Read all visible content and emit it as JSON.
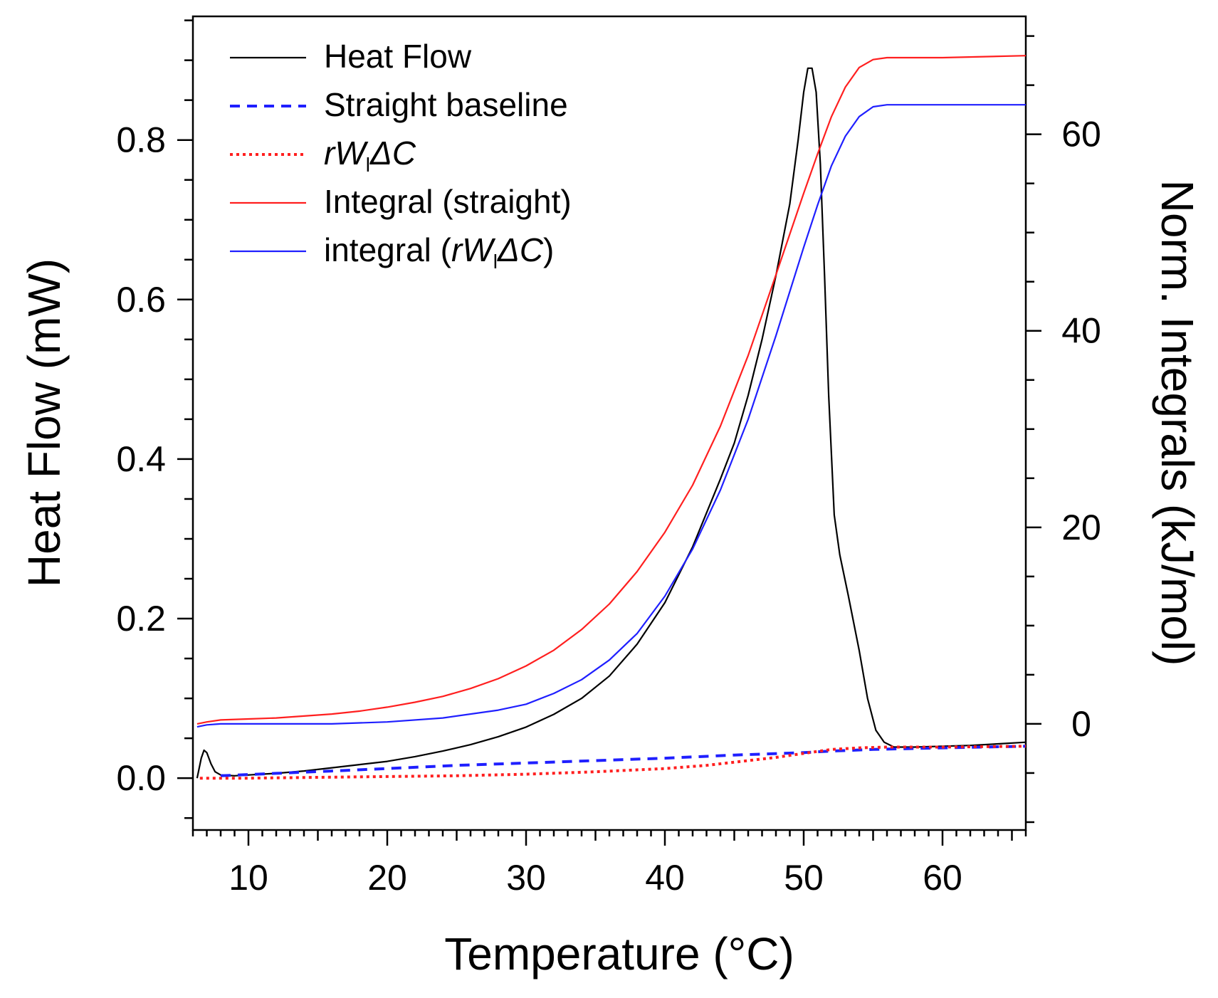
{
  "chart_data": {
    "type": "line",
    "xlabel": "Temperature (°C)",
    "ylabel": "Heat Flow (mW)",
    "y2label": "Norm. Integrals (kJ/mol)",
    "xlim": [
      6,
      66
    ],
    "ylim": [
      -0.065,
      0.955
    ],
    "y2lim": [
      -10.8,
      72
    ],
    "x_ticks": [
      10,
      20,
      30,
      40,
      50,
      60
    ],
    "x_tick_labels": [
      "10",
      "20",
      "30",
      "40",
      "50",
      "60"
    ],
    "y_ticks": [
      0.0,
      0.2,
      0.4,
      0.6,
      0.8
    ],
    "y_tick_labels": [
      "0.0",
      "0.2",
      "0.4",
      "0.6",
      "0.8"
    ],
    "y2_ticks": [
      0,
      20,
      40,
      60
    ],
    "y2_tick_labels": [
      "0",
      "20",
      "40",
      "60"
    ],
    "legend_position": "top-left",
    "series": [
      {
        "name": "Heat Flow",
        "legend_label": "Heat Flow",
        "axis": "left",
        "color": "#000000",
        "style": "solid",
        "points": [
          [
            6.3,
            0.0
          ],
          [
            6.6,
            0.025
          ],
          [
            6.8,
            0.035
          ],
          [
            7.0,
            0.032
          ],
          [
            7.3,
            0.018
          ],
          [
            7.6,
            0.008
          ],
          [
            8.0,
            0.004
          ],
          [
            9,
            0.003
          ],
          [
            10,
            0.004
          ],
          [
            12,
            0.006
          ],
          [
            14,
            0.009
          ],
          [
            16,
            0.013
          ],
          [
            18,
            0.017
          ],
          [
            20,
            0.021
          ],
          [
            22,
            0.027
          ],
          [
            24,
            0.034
          ],
          [
            26,
            0.042
          ],
          [
            28,
            0.052
          ],
          [
            30,
            0.064
          ],
          [
            32,
            0.08
          ],
          [
            34,
            0.1
          ],
          [
            36,
            0.128
          ],
          [
            38,
            0.168
          ],
          [
            40,
            0.22
          ],
          [
            42,
            0.29
          ],
          [
            44,
            0.375
          ],
          [
            45,
            0.42
          ],
          [
            46,
            0.48
          ],
          [
            47,
            0.55
          ],
          [
            48,
            0.63
          ],
          [
            49,
            0.72
          ],
          [
            49.6,
            0.8
          ],
          [
            50.0,
            0.86
          ],
          [
            50.3,
            0.89
          ],
          [
            50.6,
            0.89
          ],
          [
            50.9,
            0.86
          ],
          [
            51.2,
            0.77
          ],
          [
            51.5,
            0.63
          ],
          [
            51.8,
            0.48
          ],
          [
            52.2,
            0.33
          ],
          [
            52.6,
            0.28
          ],
          [
            53.2,
            0.23
          ],
          [
            54.0,
            0.16
          ],
          [
            54.6,
            0.1
          ],
          [
            55.2,
            0.06
          ],
          [
            55.8,
            0.045
          ],
          [
            56.5,
            0.039
          ],
          [
            58,
            0.039
          ],
          [
            60,
            0.04
          ],
          [
            62,
            0.041
          ],
          [
            64,
            0.043
          ],
          [
            66,
            0.045
          ]
        ]
      },
      {
        "name": "Straight baseline",
        "legend_label": "Straight baseline",
        "axis": "left",
        "color": "#1f1fff",
        "style": "dashed",
        "points": [
          [
            8,
            0.003
          ],
          [
            12,
            0.006
          ],
          [
            16,
            0.009
          ],
          [
            20,
            0.012
          ],
          [
            25,
            0.016
          ],
          [
            30,
            0.019
          ],
          [
            35,
            0.022
          ],
          [
            40,
            0.025
          ],
          [
            45,
            0.029
          ],
          [
            50,
            0.032
          ],
          [
            52,
            0.034
          ],
          [
            55,
            0.036
          ],
          [
            60,
            0.038
          ],
          [
            66,
            0.04
          ]
        ]
      },
      {
        "name": "rW_l ΔC",
        "legend_label": "rW",
        "legend_sub": "l",
        "legend_suffix": "ΔC",
        "axis": "left",
        "color": "#ff1f1f",
        "style": "dotted",
        "points": [
          [
            6.5,
            0.0
          ],
          [
            10,
            0.0
          ],
          [
            15,
            0.001
          ],
          [
            20,
            0.002
          ],
          [
            25,
            0.003
          ],
          [
            30,
            0.005
          ],
          [
            35,
            0.008
          ],
          [
            40,
            0.012
          ],
          [
            43,
            0.016
          ],
          [
            46,
            0.022
          ],
          [
            48,
            0.026
          ],
          [
            50,
            0.031
          ],
          [
            52,
            0.036
          ],
          [
            54,
            0.038
          ],
          [
            56,
            0.039
          ],
          [
            60,
            0.039
          ],
          [
            66,
            0.04
          ]
        ]
      },
      {
        "name": "Integral (straight)",
        "legend_label": "Integral (straight)",
        "axis": "right",
        "color": "#ff1f1f",
        "style": "solid",
        "points": [
          [
            6.3,
            0.0
          ],
          [
            7,
            0.2
          ],
          [
            8,
            0.4
          ],
          [
            10,
            0.5
          ],
          [
            12,
            0.6
          ],
          [
            14,
            0.8
          ],
          [
            16,
            1.0
          ],
          [
            18,
            1.3
          ],
          [
            20,
            1.7
          ],
          [
            22,
            2.2
          ],
          [
            24,
            2.8
          ],
          [
            26,
            3.6
          ],
          [
            28,
            4.6
          ],
          [
            30,
            5.9
          ],
          [
            32,
            7.5
          ],
          [
            34,
            9.6
          ],
          [
            36,
            12.2
          ],
          [
            38,
            15.5
          ],
          [
            40,
            19.5
          ],
          [
            42,
            24.3
          ],
          [
            44,
            30.3
          ],
          [
            46,
            37.5
          ],
          [
            48,
            45.7
          ],
          [
            50,
            54.0
          ],
          [
            51,
            58.0
          ],
          [
            52,
            61.8
          ],
          [
            53,
            64.8
          ],
          [
            54,
            66.8
          ],
          [
            55,
            67.6
          ],
          [
            56,
            67.8
          ],
          [
            60,
            67.8
          ],
          [
            66,
            68.0
          ]
        ]
      },
      {
        "name": "integral (rW_l ΔC)",
        "legend_label": "integral (",
        "legend_italic": "rW",
        "legend_sub": "l",
        "legend_suffix": "ΔC",
        "legend_close": ")",
        "axis": "right",
        "color": "#1f1fff",
        "style": "solid",
        "points": [
          [
            6.3,
            -0.3
          ],
          [
            7,
            -0.1
          ],
          [
            8,
            0.0
          ],
          [
            12,
            0.0
          ],
          [
            16,
            0.0
          ],
          [
            20,
            0.2
          ],
          [
            24,
            0.6
          ],
          [
            28,
            1.4
          ],
          [
            30,
            2.0
          ],
          [
            32,
            3.1
          ],
          [
            34,
            4.5
          ],
          [
            36,
            6.5
          ],
          [
            38,
            9.2
          ],
          [
            40,
            13.0
          ],
          [
            42,
            17.8
          ],
          [
            44,
            23.8
          ],
          [
            46,
            31.0
          ],
          [
            48,
            39.5
          ],
          [
            50,
            48.5
          ],
          [
            51,
            52.8
          ],
          [
            52,
            56.8
          ],
          [
            53,
            59.8
          ],
          [
            54,
            61.8
          ],
          [
            55,
            62.8
          ],
          [
            56,
            63.0
          ],
          [
            60,
            63.0
          ],
          [
            66,
            63.0
          ]
        ]
      }
    ]
  }
}
